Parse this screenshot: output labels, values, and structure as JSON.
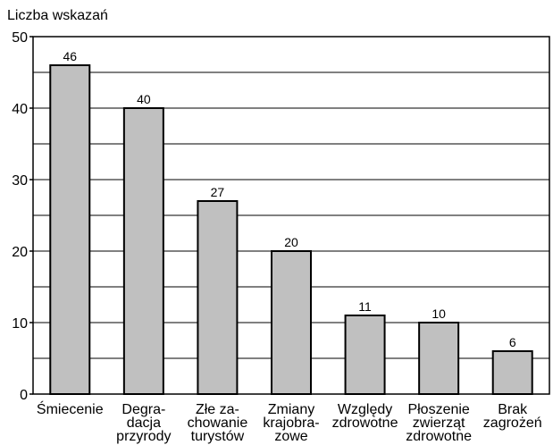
{
  "chart_data": {
    "type": "bar",
    "y_label": "Liczba wskazań",
    "categories": [
      [
        "Śmiecenie"
      ],
      [
        "Degra-",
        "dacja",
        "przyrody"
      ],
      [
        "Złe za-",
        "chowanie",
        "turystów"
      ],
      [
        "Zmiany",
        "krajobra-",
        "zowe"
      ],
      [
        "Względy",
        "zdrowotne"
      ],
      [
        "Płoszenie",
        "zwierząt",
        "zdrowotne"
      ],
      [
        "Brak",
        "zagrożeń"
      ]
    ],
    "values": [
      46,
      40,
      27,
      20,
      11,
      10,
      6
    ],
    "color": "#c0c0c0",
    "ylim": [
      0,
      50
    ],
    "yticks": [
      0,
      10,
      20,
      30,
      40,
      50
    ],
    "minor_yticks": [
      5,
      15,
      25,
      35,
      45
    ],
    "grid": true
  }
}
